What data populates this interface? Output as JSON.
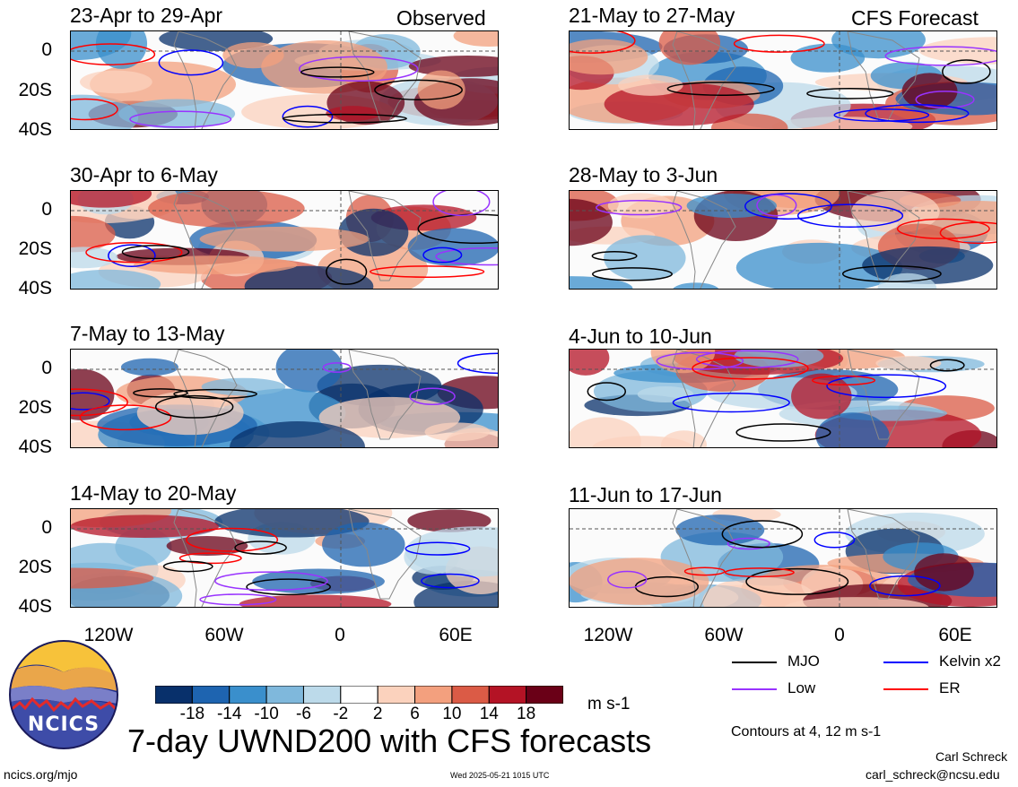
{
  "colors": {
    "mjo": "#000000",
    "low": "#9933ff",
    "kelvin": "#0000ff",
    "er": "#ff0000",
    "scale": [
      "#08306b",
      "#1e64b0",
      "#3a8fcc",
      "#7fb8dc",
      "#bcdaea",
      "#ffffff",
      "#fbd2bd",
      "#f3a07e",
      "#db5b46",
      "#b41325",
      "#6a0017"
    ]
  },
  "left_column": {
    "label": "Observed",
    "panels": [
      {
        "title": "23-Apr to 29-Apr"
      },
      {
        "title": "30-Apr to 6-May"
      },
      {
        "title": "7-May to 13-May"
      },
      {
        "title": "14-May to 20-May"
      }
    ]
  },
  "right_column": {
    "label": "CFS Forecast",
    "panels": [
      {
        "title": "21-May to 27-May"
      },
      {
        "title": "28-May to 3-Jun"
      },
      {
        "title": "4-Jun to 10-Jun"
      },
      {
        "title": "11-Jun to 17-Jun"
      }
    ]
  },
  "chart_data": {
    "type": "heatmap",
    "title": "7-day UWND200 with CFS forecasts",
    "y_ticks": [
      "0",
      "20S",
      "40S"
    ],
    "x_ticks": [
      "120W",
      "60W",
      "0",
      "60E"
    ],
    "colorbar": {
      "unit": "m s-1",
      "tick_labels": [
        "-18",
        "-14",
        "-10",
        "-6",
        "-2",
        "2",
        "6",
        "10",
        "14",
        "18"
      ]
    },
    "legend": [
      {
        "name": "MJO",
        "color": "#000000"
      },
      {
        "name": "Kelvin x2",
        "color": "#0000ff"
      },
      {
        "name": "Low",
        "color": "#9933ff"
      },
      {
        "name": "ER",
        "color": "#ff0000"
      }
    ],
    "contour_note": "Contours at 4, 12 m s-1"
  },
  "footer": {
    "logo_text": "NCICS",
    "site": "ncics.org/mjo",
    "timestamp": "Wed 2025-05-21 1015 UTC",
    "author": "Carl Schreck",
    "email": "carl_schreck@ncsu.edu"
  }
}
